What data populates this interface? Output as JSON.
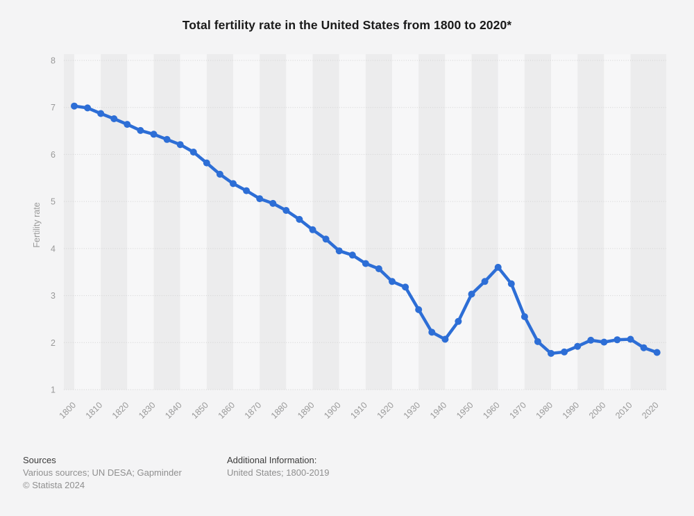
{
  "title": "Total fertility rate in the United States from 1800 to 2020*",
  "chart_data": {
    "type": "line",
    "title": "Total fertility rate in the United States from 1800 to 2020*",
    "xlabel": "",
    "ylabel": "Fertility rate",
    "ylim": [
      1,
      8
    ],
    "yticks": [
      1,
      2,
      3,
      4,
      5,
      6,
      7,
      8
    ],
    "xticks": [
      1800,
      1810,
      1820,
      1830,
      1840,
      1850,
      1860,
      1870,
      1880,
      1890,
      1900,
      1910,
      1920,
      1930,
      1940,
      1950,
      1960,
      1970,
      1980,
      1990,
      2000,
      2010,
      2020
    ],
    "x": [
      1800,
      1805,
      1810,
      1815,
      1820,
      1825,
      1830,
      1835,
      1840,
      1845,
      1850,
      1855,
      1860,
      1865,
      1870,
      1875,
      1880,
      1885,
      1890,
      1895,
      1900,
      1905,
      1910,
      1915,
      1920,
      1925,
      1930,
      1935,
      1940,
      1945,
      1950,
      1955,
      1960,
      1965,
      1970,
      1975,
      1980,
      1985,
      1990,
      1995,
      2000,
      2005,
      2010,
      2015,
      2020
    ],
    "series": [
      {
        "name": "Fertility rate",
        "color": "#2d6ed6",
        "values": [
          7.03,
          6.99,
          6.87,
          6.76,
          6.64,
          6.51,
          6.43,
          6.32,
          6.21,
          6.05,
          5.82,
          5.58,
          5.38,
          5.23,
          5.06,
          4.96,
          4.81,
          4.62,
          4.4,
          4.2,
          3.95,
          3.86,
          3.68,
          3.57,
          3.3,
          3.18,
          2.7,
          2.22,
          2.07,
          2.45,
          3.03,
          3.3,
          3.6,
          3.25,
          2.55,
          2.02,
          1.77,
          1.8,
          1.92,
          2.05,
          2.01,
          2.06,
          2.07,
          1.89,
          1.79
        ]
      }
    ],
    "grid": "horizontal-dotted",
    "legend": "none",
    "colors": {
      "line": "#2d6ed6",
      "tick_text": "#999999",
      "gridline": "#d2d2d2",
      "stripe_dark": "#ececed",
      "stripe_light": "#f7f7f8"
    }
  },
  "footer": {
    "sources_heading": "Sources",
    "sources_line": "Various sources; UN DESA; Gapminder",
    "copyright": "© Statista 2024",
    "additional_heading": "Additional Information:",
    "additional_line": "United States; 1800-2019"
  }
}
